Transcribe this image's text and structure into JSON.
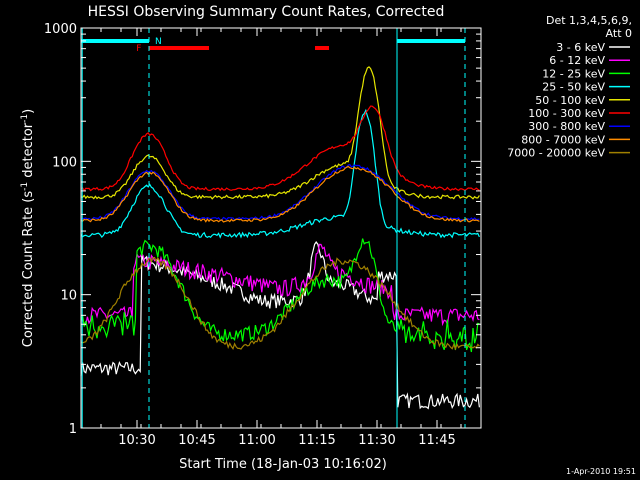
{
  "chart_data": {
    "type": "line",
    "title": "HESSI Observing Summary Count Rates, Corrected",
    "xlabel": "Start Time (18-Jan-03 10:16:02)",
    "ylabel_main": "Corrected Count Rate (s",
    "ylabel_sup1": "-1",
    "ylabel_mid": " detector",
    "ylabel_sup2": "-1",
    "ylabel_end": ")",
    "x_ticks": [
      "10:30",
      "10:45",
      "11:00",
      "11:15",
      "11:30",
      "11:45"
    ],
    "y_ticks": [
      "1",
      "10",
      "100",
      "1000"
    ],
    "y_scale": "log",
    "ylim": [
      1,
      1000
    ],
    "xlim_minutes": [
      0,
      100
    ],
    "legend_title": [
      "Det 1,3,4,5,6,9,",
      "Att 0"
    ],
    "series": [
      {
        "name": "3 - 6 keV",
        "color": "#ffffff"
      },
      {
        "name": "6 - 12 keV",
        "color": "#ff00ff"
      },
      {
        "name": "12 - 25 keV",
        "color": "#00ff00"
      },
      {
        "name": "25 - 50 keV",
        "color": "#00ffff"
      },
      {
        "name": "50 - 100 keV",
        "color": "#e6e600"
      },
      {
        "name": "100 - 300 keV",
        "color": "#ff0000"
      },
      {
        "name": "300 - 800 keV",
        "color": "#0000ff"
      },
      {
        "name": "800 - 7000 keV",
        "color": "#ff8c00"
      },
      {
        "name": "7000 - 20000 keV",
        "color": "#a08000"
      }
    ],
    "flags": [
      {
        "label": "N",
        "color": "#00ffff"
      },
      {
        "label": "F",
        "color": "#ff0000"
      }
    ],
    "timestamp": "1-Apr-2010 19:51"
  }
}
